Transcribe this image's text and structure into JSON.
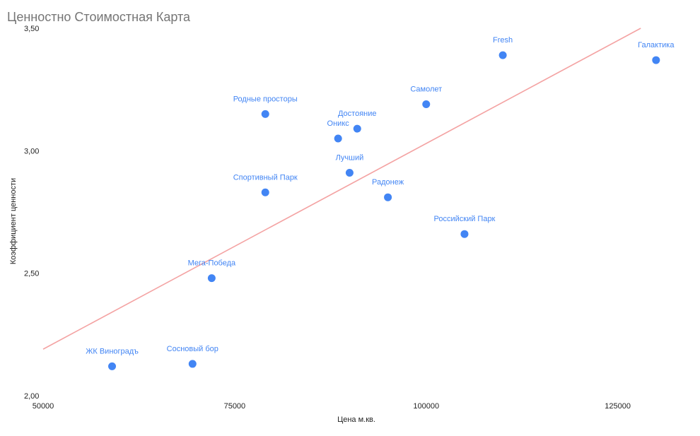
{
  "chart_data": {
    "type": "scatter",
    "title": "Ценностно Стоимостная Карта",
    "xlabel": "Цена м.кв.",
    "ylabel": "Коэффициент ценности",
    "xlim": [
      50000,
      135000
    ],
    "ylim": [
      2.0,
      3.5
    ],
    "x_ticks": [
      "50000",
      "75000",
      "100000",
      "125000"
    ],
    "y_ticks": [
      "2,00",
      "2,50",
      "3,00",
      "3,50"
    ],
    "grid": false,
    "legend": "none",
    "colors": {
      "points": "#4285f4",
      "labels": "#4285f4",
      "trendline": "#f4a3a3",
      "title": "#757575",
      "axis_text": "#222222"
    },
    "points": [
      {
        "label": "Fresh",
        "x": 110000,
        "y": 3.39
      },
      {
        "label": "Галактика",
        "x": 130000,
        "y": 3.37
      },
      {
        "label": "Самолет",
        "x": 100000,
        "y": 3.19
      },
      {
        "label": "Родные просторы",
        "x": 79000,
        "y": 3.15
      },
      {
        "label": "Достояние",
        "x": 91000,
        "y": 3.09
      },
      {
        "label": "Оникс",
        "x": 88500,
        "y": 3.05
      },
      {
        "label": "Лучший",
        "x": 90000,
        "y": 2.91
      },
      {
        "label": "Спортивный Парк",
        "x": 79000,
        "y": 2.83
      },
      {
        "label": "Радонеж",
        "x": 95000,
        "y": 2.81
      },
      {
        "label": "Российский Парк",
        "x": 105000,
        "y": 2.66
      },
      {
        "label": "Мега-Победа",
        "x": 72000,
        "y": 2.48
      },
      {
        "label": "ЖК Виноградъ",
        "x": 59000,
        "y": 2.12
      },
      {
        "label": "Сосновый бор",
        "x": 69500,
        "y": 2.13
      }
    ],
    "trendline": {
      "x": [
        50000,
        128000
      ],
      "y": [
        2.19,
        3.5
      ]
    }
  }
}
